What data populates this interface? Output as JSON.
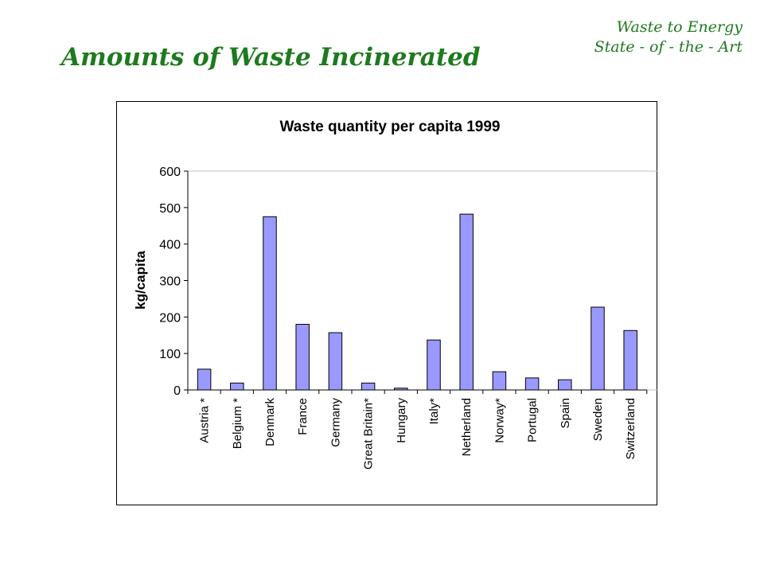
{
  "header": {
    "line1": "Waste to Energy",
    "line2": "State - of - the - Art",
    "slide_title": "Amounts of Waste Incinerated"
  },
  "chart_data": {
    "type": "bar",
    "title": "Waste quantity per capita 1999",
    "xlabel": "",
    "ylabel": "kg/capita",
    "ylim": [
      0,
      600
    ],
    "yticks": [
      0,
      100,
      200,
      300,
      400,
      500,
      600
    ],
    "grid": false,
    "legend": "none",
    "categories": [
      "Austria *",
      "Belgium *",
      "Denmark",
      "France",
      "Germany",
      "Great Britain*",
      "Hungary",
      "Italy*",
      "Netherland",
      "Norway*",
      "Portugal",
      "Spain",
      "Sweden",
      "Switzerland"
    ],
    "values": [
      57,
      19,
      475,
      180,
      157,
      19,
      5,
      137,
      482,
      50,
      33,
      28,
      227,
      163
    ],
    "colors": {
      "bar_fill": "#9999ff",
      "bar_stroke": "#000000"
    }
  }
}
